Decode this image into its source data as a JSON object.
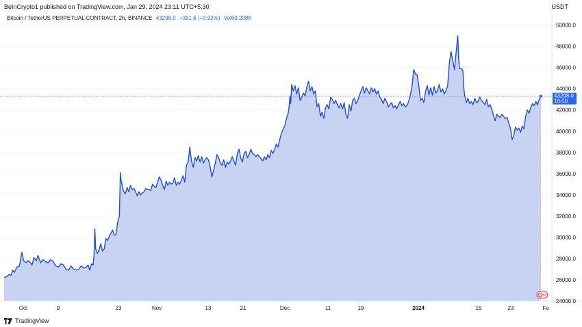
{
  "header": {
    "publisher_line": "BeInCrypto1 published on TradingView.com, Jan 29, 2024 23:11 UTC+5:30",
    "currency": "USDT"
  },
  "legend": {
    "symbol": "Bitcoin / TetherUS PERPETUAL CONTRACT, 2h, BINANCE",
    "last": "43298.0",
    "change": "+391.6 (+0.92%)",
    "volume": "Vol69.208K"
  },
  "price_label": {
    "value": "43298.0",
    "countdown": "18:50"
  },
  "footer": {
    "brand": "TradingView"
  },
  "colors": {
    "line": "#1f4fd1",
    "area": "#c8d3f4",
    "price_tag": "#2962ff",
    "axis_text": "#131722"
  },
  "chart_data": {
    "type": "area",
    "y_axis_side": "right",
    "ylim": [
      24000,
      51200
    ],
    "y_ticks": [
      "24000.0",
      "26000.0",
      "28000.0",
      "30000.0",
      "32000.0",
      "34000.0",
      "36000.0",
      "38000.0",
      "40000.0",
      "42000.0",
      "44000.0",
      "46000.0",
      "48000.0",
      "50000.0"
    ],
    "x_ticks": [
      "Oct",
      "9",
      "23",
      "Nov",
      "13",
      "21",
      "Dec",
      "11",
      "19",
      "2024",
      "15",
      "23",
      "Fe"
    ],
    "current_price": 43298.0,
    "series": [
      {
        "points": [
          [
            0,
            26200
          ],
          [
            3,
            26300
          ],
          [
            6,
            26500
          ],
          [
            8,
            26400
          ],
          [
            10,
            26900
          ],
          [
            12,
            26700
          ],
          [
            15,
            27200
          ],
          [
            18,
            27300
          ],
          [
            21,
            28600
          ],
          [
            23,
            27800
          ],
          [
            26,
            27600
          ],
          [
            28,
            27800
          ],
          [
            30,
            27700
          ],
          [
            33,
            27400
          ],
          [
            35,
            28100
          ],
          [
            38,
            27800
          ],
          [
            40,
            28300
          ],
          [
            43,
            27600
          ],
          [
            46,
            27900
          ],
          [
            49,
            27700
          ],
          [
            52,
            27600
          ],
          [
            55,
            27900
          ],
          [
            58,
            27700
          ],
          [
            61,
            27300
          ],
          [
            64,
            27200
          ],
          [
            67,
            27500
          ],
          [
            70,
            27400
          ],
          [
            73,
            27000
          ],
          [
            76,
            26900
          ],
          [
            79,
            27300
          ],
          [
            82,
            27000
          ],
          [
            85,
            26900
          ],
          [
            88,
            27000
          ],
          [
            91,
            27300
          ],
          [
            94,
            27100
          ],
          [
            97,
            27200
          ],
          [
            99,
            27400
          ],
          [
            101,
            26900
          ],
          [
            103,
            27500
          ],
          [
            105,
            27400
          ],
          [
            106,
            28300
          ],
          [
            107,
            30800
          ],
          [
            108,
            28900
          ],
          [
            110,
            28500
          ],
          [
            112,
            28800
          ],
          [
            114,
            29400
          ],
          [
            116,
            28700
          ],
          [
            118,
            28900
          ],
          [
            120,
            29900
          ],
          [
            122,
            29700
          ],
          [
            124,
            30100
          ],
          [
            126,
            30400
          ],
          [
            128,
            30700
          ],
          [
            130,
            30200
          ],
          [
            132,
            30300
          ],
          [
            134,
            31500
          ],
          [
            136,
            32000
          ],
          [
            137,
            36100
          ],
          [
            138,
            35300
          ],
          [
            139,
            35000
          ],
          [
            141,
            34300
          ],
          [
            143,
            34100
          ],
          [
            145,
            34700
          ],
          [
            147,
            34300
          ],
          [
            149,
            34900
          ],
          [
            151,
            34500
          ],
          [
            153,
            34600
          ],
          [
            155,
            34300
          ],
          [
            157,
            33900
          ],
          [
            159,
            34300
          ],
          [
            161,
            34000
          ],
          [
            163,
            34200
          ],
          [
            165,
            34300
          ],
          [
            167,
            34600
          ],
          [
            169,
            34500
          ],
          [
            171,
            34500
          ],
          [
            173,
            34400
          ],
          [
            175,
            35000
          ],
          [
            177,
            34800
          ],
          [
            179,
            34700
          ],
          [
            181,
            35200
          ],
          [
            183,
            35700
          ],
          [
            185,
            35400
          ],
          [
            187,
            34900
          ],
          [
            189,
            34500
          ],
          [
            191,
            35300
          ],
          [
            193,
            34900
          ],
          [
            195,
            35200
          ],
          [
            197,
            35000
          ],
          [
            199,
            35100
          ],
          [
            201,
            35600
          ],
          [
            203,
            34900
          ],
          [
            205,
            35200
          ],
          [
            207,
            35000
          ],
          [
            209,
            35400
          ],
          [
            211,
            35800
          ],
          [
            213,
            35200
          ],
          [
            215,
            36800
          ],
          [
            217,
            37100
          ],
          [
            219,
            38500
          ],
          [
            221,
            37200
          ],
          [
            223,
            36600
          ],
          [
            225,
            37500
          ],
          [
            227,
            37200
          ],
          [
            229,
            37700
          ],
          [
            231,
            37100
          ],
          [
            233,
            37600
          ],
          [
            235,
            37000
          ],
          [
            237,
            37300
          ],
          [
            239,
            37500
          ],
          [
            241,
            37300
          ],
          [
            243,
            36600
          ],
          [
            245,
            35700
          ],
          [
            247,
            36300
          ],
          [
            249,
            37000
          ],
          [
            251,
            37800
          ],
          [
            253,
            37500
          ],
          [
            255,
            37000
          ],
          [
            257,
            36800
          ],
          [
            259,
            37300
          ],
          [
            261,
            36600
          ],
          [
            263,
            37100
          ],
          [
            265,
            36900
          ],
          [
            267,
            37200
          ],
          [
            269,
            37600
          ],
          [
            271,
            37200
          ],
          [
            273,
            36800
          ],
          [
            275,
            37900
          ],
          [
            277,
            38300
          ],
          [
            279,
            37500
          ],
          [
            281,
            37100
          ],
          [
            283,
            37900
          ],
          [
            285,
            38100
          ],
          [
            287,
            37500
          ],
          [
            289,
            37800
          ],
          [
            291,
            38300
          ],
          [
            293,
            37900
          ],
          [
            295,
            37800
          ],
          [
            297,
            37600
          ],
          [
            299,
            37800
          ],
          [
            301,
            37600
          ],
          [
            303,
            37400
          ],
          [
            305,
            37200
          ],
          [
            307,
            37600
          ],
          [
            309,
            37300
          ],
          [
            311,
            37800
          ],
          [
            313,
            37500
          ],
          [
            315,
            38200
          ],
          [
            317,
            37900
          ],
          [
            319,
            38300
          ],
          [
            321,
            38800
          ],
          [
            323,
            38500
          ],
          [
            325,
            39200
          ],
          [
            327,
            39800
          ],
          [
            329,
            40200
          ],
          [
            331,
            40500
          ],
          [
            333,
            41200
          ],
          [
            335,
            41700
          ],
          [
            336,
            42300
          ],
          [
            337,
            43300
          ],
          [
            338,
            42600
          ],
          [
            339,
            44400
          ],
          [
            341,
            43800
          ],
          [
            343,
            44300
          ],
          [
            345,
            43500
          ],
          [
            347,
            44100
          ],
          [
            349,
            42900
          ],
          [
            351,
            43200
          ],
          [
            353,
            43600
          ],
          [
            355,
            43300
          ],
          [
            357,
            44200
          ],
          [
            359,
            44700
          ],
          [
            361,
            43800
          ],
          [
            363,
            44200
          ],
          [
            365,
            43500
          ],
          [
            367,
            43800
          ],
          [
            369,
            42300
          ],
          [
            371,
            42600
          ],
          [
            373,
            41400
          ],
          [
            375,
            41800
          ],
          [
            377,
            41200
          ],
          [
            379,
            42200
          ],
          [
            381,
            42500
          ],
          [
            383,
            42100
          ],
          [
            385,
            43200
          ],
          [
            387,
            43000
          ],
          [
            389,
            42600
          ],
          [
            391,
            42900
          ],
          [
            393,
            42500
          ],
          [
            395,
            42200
          ],
          [
            397,
            42600
          ],
          [
            399,
            42100
          ],
          [
            401,
            42700
          ],
          [
            403,
            41600
          ],
          [
            405,
            41200
          ],
          [
            407,
            42500
          ],
          [
            409,
            41900
          ],
          [
            411,
            42900
          ],
          [
            413,
            43100
          ],
          [
            415,
            42600
          ],
          [
            417,
            42900
          ],
          [
            419,
            43400
          ],
          [
            421,
            43800
          ],
          [
            423,
            44200
          ],
          [
            425,
            43600
          ],
          [
            427,
            44100
          ],
          [
            429,
            43800
          ],
          [
            431,
            43500
          ],
          [
            433,
            44100
          ],
          [
            435,
            43700
          ],
          [
            437,
            44000
          ],
          [
            439,
            43500
          ],
          [
            441,
            43800
          ],
          [
            443,
            43200
          ],
          [
            445,
            43000
          ],
          [
            447,
            42600
          ],
          [
            449,
            43100
          ],
          [
            451,
            42800
          ],
          [
            453,
            42300
          ],
          [
            455,
            42500
          ],
          [
            457,
            42700
          ],
          [
            459,
            42200
          ],
          [
            461,
            42400
          ],
          [
            463,
            42100
          ],
          [
            465,
            42500
          ],
          [
            467,
            42800
          ],
          [
            469,
            42400
          ],
          [
            471,
            42600
          ],
          [
            473,
            42300
          ],
          [
            475,
            42400
          ],
          [
            477,
            42800
          ],
          [
            479,
            43400
          ],
          [
            481,
            44200
          ],
          [
            483,
            45800
          ],
          [
            485,
            45400
          ],
          [
            487,
            45300
          ],
          [
            489,
            44300
          ],
          [
            491,
            42900
          ],
          [
            493,
            43100
          ],
          [
            495,
            42700
          ],
          [
            497,
            43800
          ],
          [
            499,
            44300
          ],
          [
            501,
            43400
          ],
          [
            503,
            44100
          ],
          [
            505,
            43400
          ],
          [
            507,
            44200
          ],
          [
            509,
            43600
          ],
          [
            511,
            43800
          ],
          [
            513,
            44400
          ],
          [
            515,
            43700
          ],
          [
            517,
            44000
          ],
          [
            519,
            43500
          ],
          [
            521,
            43800
          ],
          [
            523,
            44300
          ],
          [
            525,
            46400
          ],
          [
            527,
            47500
          ],
          [
            529,
            46700
          ],
          [
            531,
            45800
          ],
          [
            533,
            47400
          ],
          [
            535,
            49000
          ],
          [
            536,
            46800
          ],
          [
            537,
            45900
          ],
          [
            539,
            45900
          ],
          [
            541,
            45700
          ],
          [
            542,
            44100
          ],
          [
            543,
            43400
          ],
          [
            545,
            42700
          ],
          [
            547,
            43100
          ],
          [
            549,
            42600
          ],
          [
            551,
            42800
          ],
          [
            553,
            42500
          ],
          [
            555,
            43100
          ],
          [
            557,
            42700
          ],
          [
            559,
            42800
          ],
          [
            561,
            43200
          ],
          [
            563,
            42900
          ],
          [
            565,
            42700
          ],
          [
            567,
            42500
          ],
          [
            569,
            43000
          ],
          [
            571,
            42300
          ],
          [
            573,
            42500
          ],
          [
            575,
            42100
          ],
          [
            577,
            41500
          ],
          [
            579,
            41000
          ],
          [
            581,
            41600
          ],
          [
            583,
            41400
          ],
          [
            585,
            41300
          ],
          [
            587,
            41600
          ],
          [
            589,
            41400
          ],
          [
            591,
            41200
          ],
          [
            593,
            41300
          ],
          [
            595,
            40800
          ],
          [
            597,
            40300
          ],
          [
            598,
            39800
          ],
          [
            599,
            39200
          ],
          [
            601,
            39600
          ],
          [
            603,
            40400
          ],
          [
            605,
            40100
          ],
          [
            607,
            40300
          ],
          [
            609,
            39900
          ],
          [
            611,
            40500
          ],
          [
            613,
            40200
          ],
          [
            615,
            41400
          ],
          [
            617,
            42000
          ],
          [
            619,
            41700
          ],
          [
            621,
            42200
          ],
          [
            623,
            42600
          ],
          [
            625,
            42400
          ],
          [
            627,
            42800
          ],
          [
            629,
            42500
          ],
          [
            631,
            43000
          ],
          [
            633,
            43298
          ]
        ]
      }
    ]
  }
}
